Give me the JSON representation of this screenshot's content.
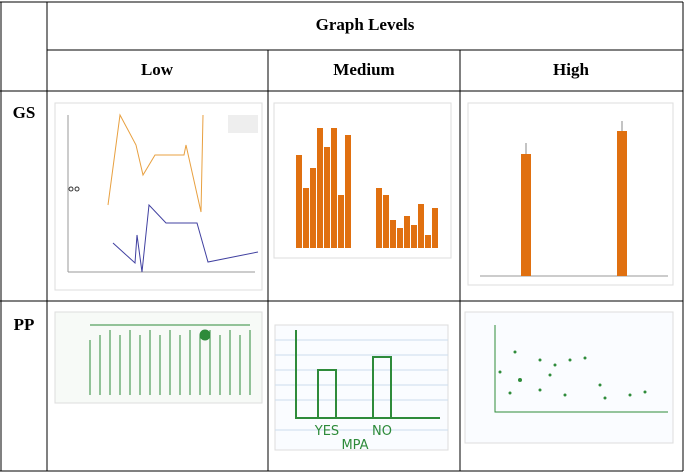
{
  "table": {
    "header": {
      "title": "Graph Levels",
      "columns": [
        "Low",
        "Medium",
        "High"
      ]
    },
    "rows": [
      {
        "label": "GS"
      },
      {
        "label": "PP"
      }
    ]
  },
  "sketches": {
    "pp_medium": {
      "x_labels": [
        "YES",
        "NO"
      ],
      "x_title": "MPA"
    }
  }
}
